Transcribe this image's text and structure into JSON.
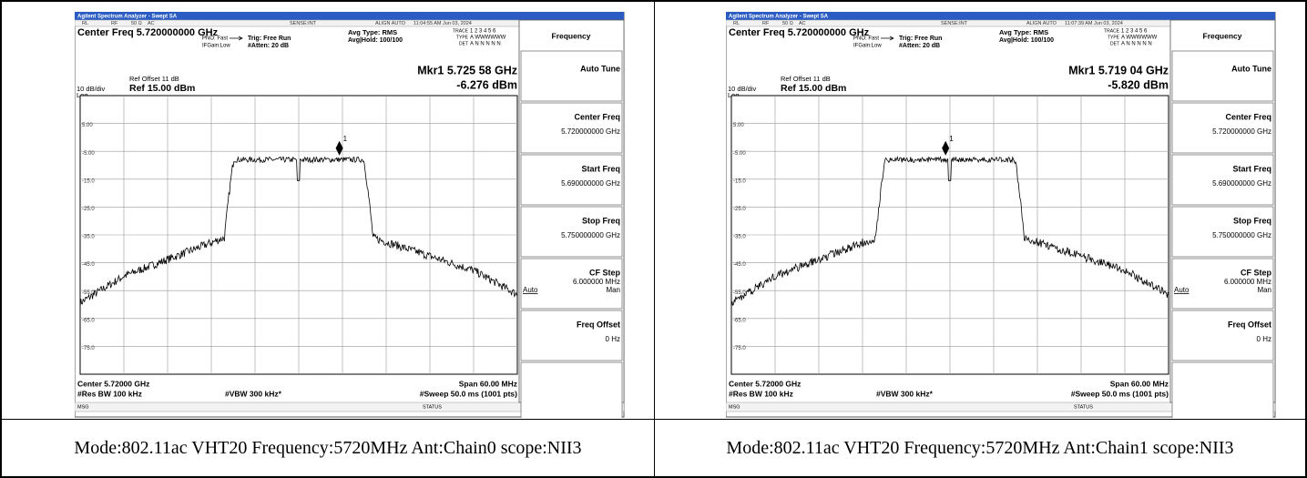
{
  "panels": [
    {
      "window_title": "Agilent Spectrum Analyzer - Swept SA",
      "status_bar": [
        "RL",
        "RF",
        "50 Ω",
        "AC",
        "SENSE:INT",
        "ALIGN AUTO",
        "11:04:55 AM Jun 03, 2024"
      ],
      "center_freq": "Center Freq 5.720000000 GHz",
      "pno": "PNO: Fast",
      "ifgain": "IFGain:Low",
      "trig": "Trig: Free Run",
      "atten": "#Atten: 20 dB",
      "avg_type": "Avg Type: RMS",
      "avg_hold": "Avg|Hold: 100/100",
      "trace_label": "TRACE",
      "trace_nums": "1 2 3 4 5 6",
      "type_label": "TYPE",
      "type_val": "A WWWWWW",
      "det_label": "DET",
      "det_val": "A N N N N N",
      "ref_offset": "Ref Offset 11 dB",
      "scale": "10 dB/div",
      "ref": "Ref 15.00 dBm",
      "log": "Log",
      "marker": "Mkr1 5.725 58 GHz",
      "marker_level": "-6.276 dBm",
      "marker_num": "1",
      "y_labels": [
        "5.00",
        "-5.00",
        "-15.0",
        "-25.0",
        "-35.0",
        "-45.0",
        "-55.0",
        "-65.0",
        "-75.0"
      ],
      "center": "Center 5.72000 GHz",
      "span": "Span 60.00 MHz",
      "res_bw": "#Res BW 100 kHz",
      "vbw": "#VBW 300 kHz*",
      "sweep": "#Sweep  50.0 ms (1001 pts)",
      "msg": "MSG",
      "status": "STATUS",
      "menu_title": "Frequency",
      "softkeys": [
        {
          "label": "Auto Tune"
        },
        {
          "label": "Center Freq",
          "value": "5.720000000 GHz"
        },
        {
          "label": "Start Freq",
          "value": "5.690000000 GHz"
        },
        {
          "label": "Stop Freq",
          "value": "5.750000000 GHz"
        },
        {
          "label": "CF Step",
          "value": "6.000000 MHz",
          "options": [
            "Auto",
            "Man"
          ]
        },
        {
          "label": "Freq Offset",
          "value": "0 Hz"
        }
      ]
    },
    {
      "window_title": "Agilent Spectrum Analyzer - Swept SA",
      "status_bar": [
        "RL",
        "RF",
        "50 Ω",
        "AC",
        "SENSE:INT",
        "ALIGN AUTO",
        "11:07:39 AM Jun 03, 2024"
      ],
      "center_freq": "Center Freq 5.720000000 GHz",
      "pno": "PNO: Fast",
      "ifgain": "IFGain:Low",
      "trig": "Trig: Free Run",
      "atten": "#Atten: 20 dB",
      "avg_type": "Avg Type: RMS",
      "avg_hold": "Avg|Hold: 100/100",
      "trace_label": "TRACE",
      "trace_nums": "1 2 3 4 5 6",
      "type_label": "TYPE",
      "type_val": "A WWWWWW",
      "det_label": "DET",
      "det_val": "A N N N N N",
      "ref_offset": "Ref Offset 11 dB",
      "scale": "10 dB/div",
      "ref": "Ref 15.00 dBm",
      "log": "Log",
      "marker": "Mkr1 5.719 04 GHz",
      "marker_level": "-5.820 dBm",
      "marker_num": "1",
      "y_labels": [
        "5.00",
        "-5.00",
        "-15.0",
        "-25.0",
        "-35.0",
        "-45.0",
        "-55.0",
        "-65.0",
        "-75.0"
      ],
      "center": "Center 5.72000 GHz",
      "span": "Span 60.00 MHz",
      "res_bw": "#Res BW 100 kHz",
      "vbw": "#VBW 300 kHz*",
      "sweep": "#Sweep  50.0 ms (1001 pts)",
      "msg": "MSG",
      "status": "STATUS",
      "menu_title": "Frequency",
      "softkeys": [
        {
          "label": "Auto Tune"
        },
        {
          "label": "Center Freq",
          "value": "5.720000000 GHz"
        },
        {
          "label": "Start Freq",
          "value": "5.690000000 GHz"
        },
        {
          "label": "Stop Freq",
          "value": "5.750000000 GHz"
        },
        {
          "label": "CF Step",
          "value": "6.000000 MHz",
          "options": [
            "Auto",
            "Man"
          ]
        },
        {
          "label": "Freq Offset",
          "value": "0 Hz"
        }
      ]
    }
  ],
  "captions": [
    "Mode:802.11ac VHT20 Frequency:5720MHz Ant:Chain0 scope:NII3",
    "Mode:802.11ac VHT20 Frequency:5720MHz Ant:Chain1 scope:NII3"
  ]
}
